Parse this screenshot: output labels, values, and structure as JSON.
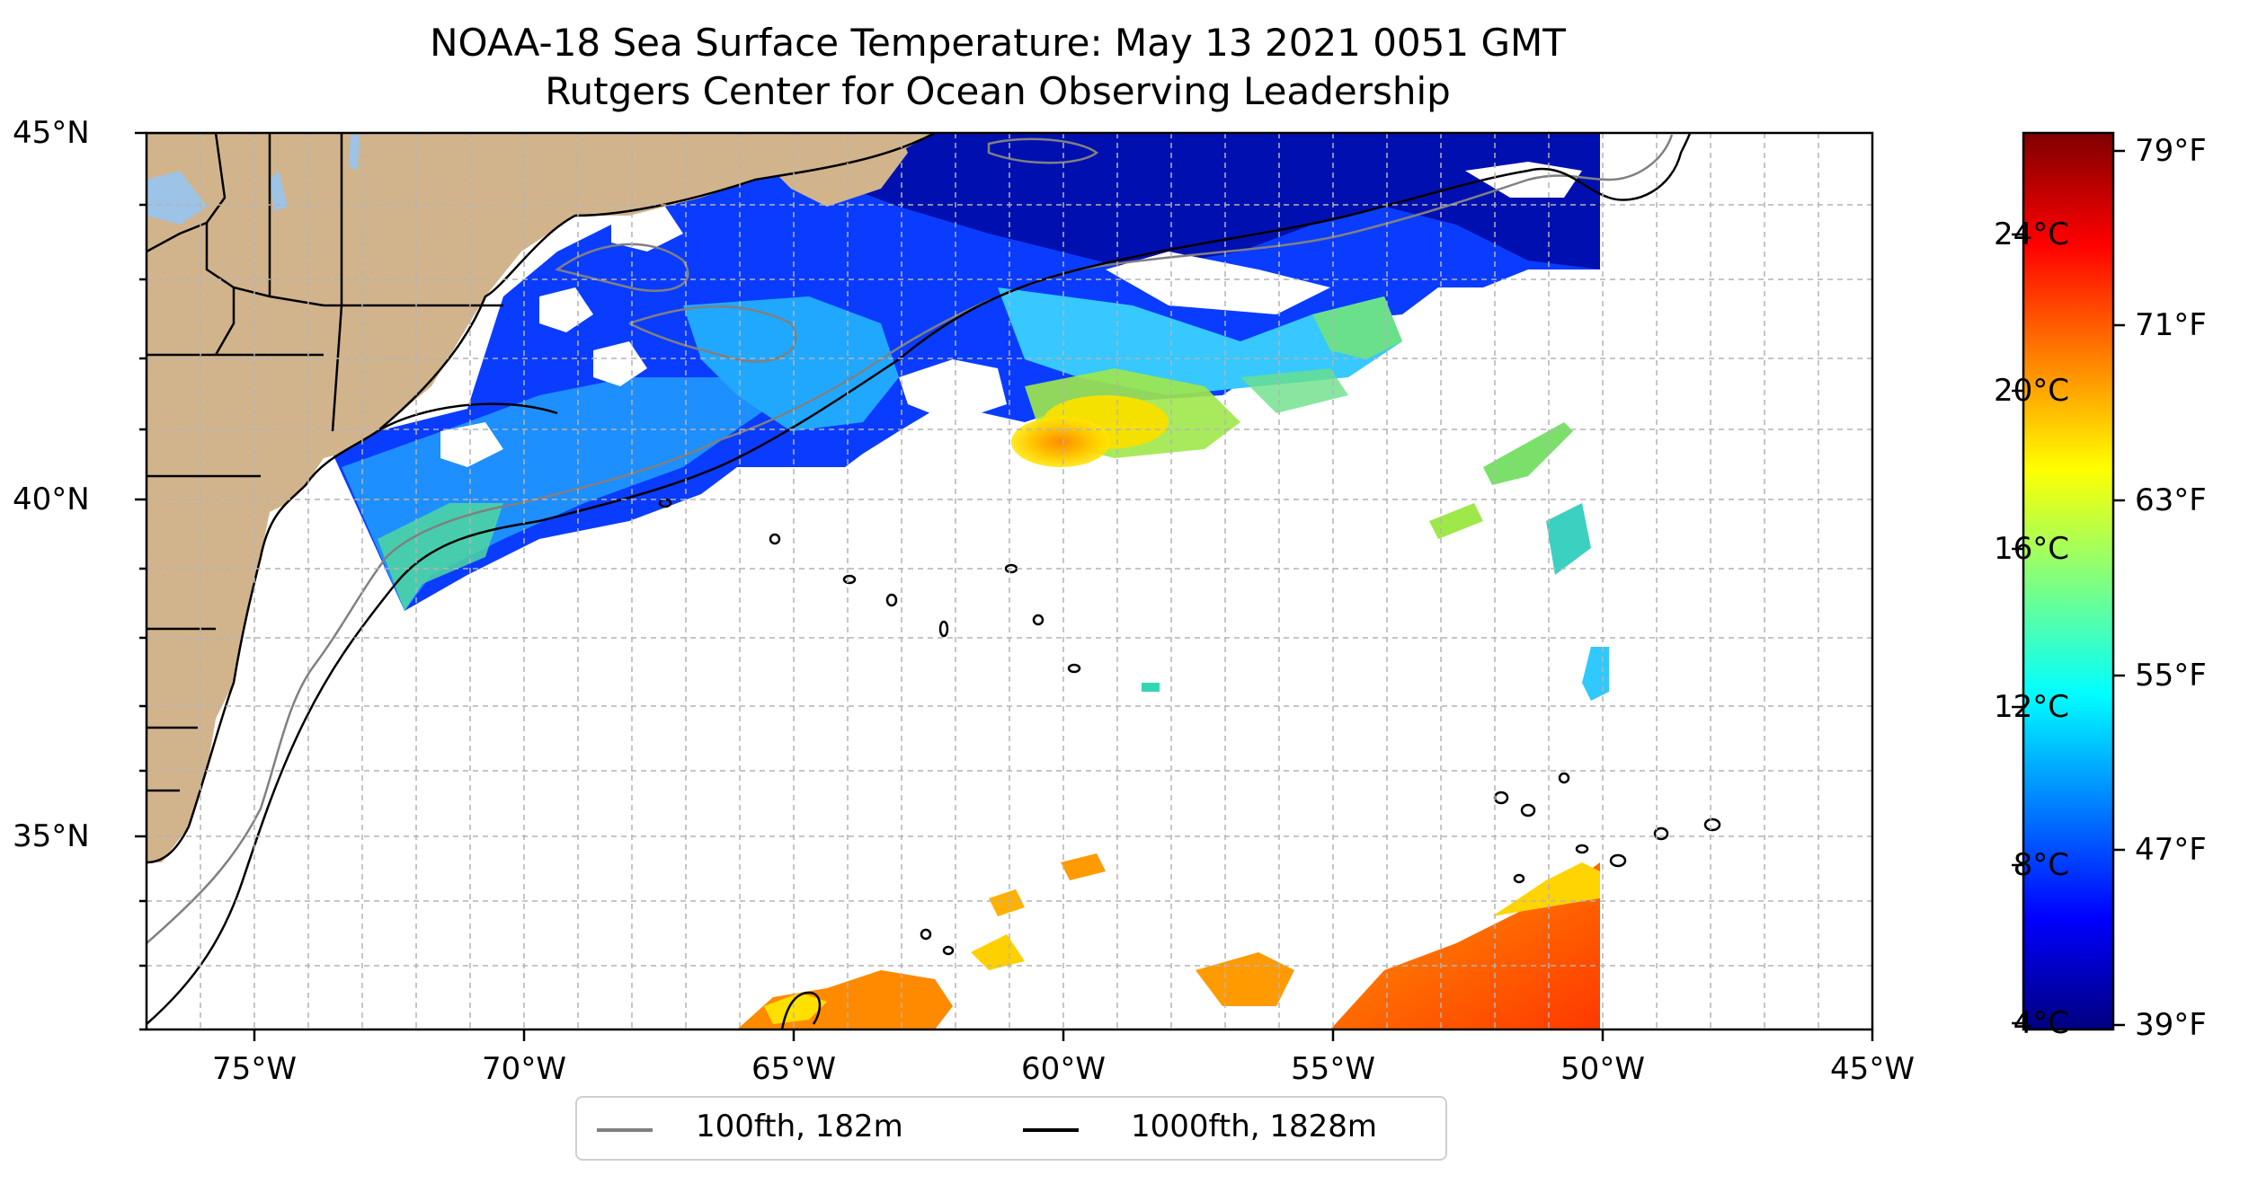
{
  "title_line1": "NOAA-18 Sea Surface Temperature: May 13 2021 0051 GMT",
  "title_line2": "Rutgers Center for Ocean Observing Leadership",
  "lat_ticks": [
    "45°N",
    "40°N",
    "35°N"
  ],
  "lon_ticks": [
    "75°W",
    "70°W",
    "65°W",
    "60°W",
    "55°W",
    "50°W",
    "45°W"
  ],
  "extent": {
    "lon_min": -77,
    "lon_max": -45,
    "lat_min": 32.2,
    "lat_max": 45
  },
  "colorbar": {
    "celsius_ticks": [
      "24°C",
      "20°C",
      "16°C",
      "12°C",
      "8°C",
      "4°C"
    ],
    "fahrenheit_ticks": [
      "79°F",
      "71°F",
      "63°F",
      "55°F",
      "47°F",
      "39°F"
    ],
    "colormap": "jet"
  },
  "legend": [
    {
      "label": "100fth, 182m",
      "color": "#808080"
    },
    {
      "label": "1000fth, 1828m",
      "color": "#000000"
    }
  ],
  "colors": {
    "land": "#d2b48c",
    "lakes": "#9dc3e6",
    "ocean_no_data": "#ffffff"
  }
}
